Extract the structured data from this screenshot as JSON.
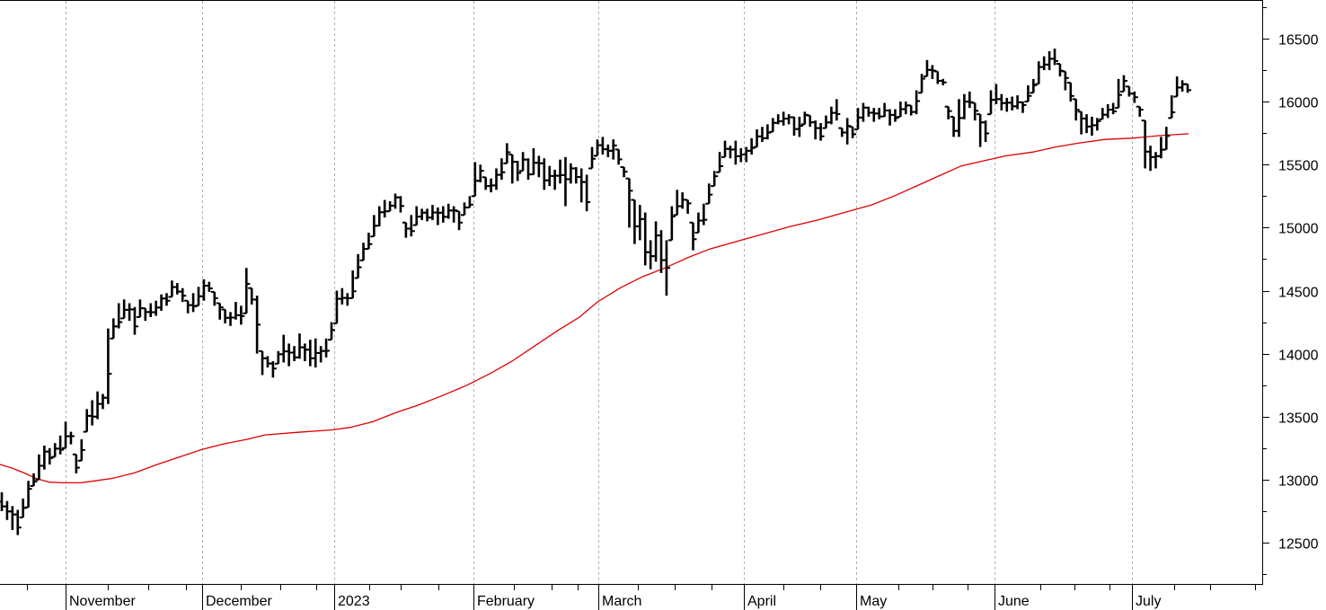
{
  "chart_data": {
    "type": "ohlc",
    "title": "",
    "xlabel": "",
    "ylabel": "",
    "ylim": [
      12150,
      16800
    ],
    "y_ticks": [
      12500,
      13000,
      13500,
      14000,
      14500,
      15000,
      15500,
      16000,
      16500
    ],
    "x_month_labels": [
      "November",
      "December",
      "2023",
      "February",
      "March",
      "April",
      "May",
      "June",
      "July"
    ],
    "grid": "vertical dashed at month starts",
    "colors": {
      "price_bars": "#000000",
      "moving_average": "#dd0000"
    },
    "series": [
      {
        "kind": "ohlc",
        "values": [
          [
            12900,
            12750
          ],
          [
            12830,
            12680
          ],
          [
            12790,
            12600
          ],
          [
            12760,
            12560
          ],
          [
            12850,
            12700
          ],
          [
            12990,
            12780
          ],
          [
            13050,
            12950
          ],
          [
            13200,
            13000
          ],
          [
            13270,
            13080
          ],
          [
            13250,
            13120
          ],
          [
            13290,
            13180
          ],
          [
            13350,
            13200
          ],
          [
            13460,
            13250
          ],
          [
            13380,
            13280
          ],
          [
            13200,
            13050
          ],
          [
            13320,
            13150
          ],
          [
            13560,
            13380
          ],
          [
            13630,
            13430
          ],
          [
            13700,
            13480
          ],
          [
            13680,
            13560
          ],
          [
            14200,
            13600
          ],
          [
            14280,
            14120
          ],
          [
            14400,
            14200
          ],
          [
            14430,
            14280
          ],
          [
            14400,
            14260
          ],
          [
            14370,
            14150
          ],
          [
            14430,
            14290
          ],
          [
            14360,
            14260
          ],
          [
            14400,
            14290
          ],
          [
            14420,
            14300
          ],
          [
            14470,
            14340
          ],
          [
            14480,
            14380
          ],
          [
            14580,
            14450
          ],
          [
            14560,
            14470
          ],
          [
            14520,
            14410
          ],
          [
            14420,
            14320
          ],
          [
            14480,
            14330
          ],
          [
            14530,
            14380
          ],
          [
            14590,
            14420
          ],
          [
            14570,
            14490
          ],
          [
            14490,
            14380
          ],
          [
            14400,
            14270
          ],
          [
            14350,
            14240
          ],
          [
            14330,
            14220
          ],
          [
            14410,
            14270
          ],
          [
            14380,
            14230
          ],
          [
            14680,
            14320
          ],
          [
            14520,
            14390
          ],
          [
            14460,
            14000
          ],
          [
            14020,
            13830
          ],
          [
            13980,
            13890
          ],
          [
            13940,
            13810
          ],
          [
            14020,
            13920
          ],
          [
            14150,
            13930
          ],
          [
            14080,
            13900
          ],
          [
            14060,
            13940
          ],
          [
            14160,
            13960
          ],
          [
            14080,
            13940
          ],
          [
            14110,
            13900
          ],
          [
            14120,
            13890
          ],
          [
            14060,
            13930
          ],
          [
            14120,
            13970
          ],
          [
            14250,
            14110
          ],
          [
            14500,
            14240
          ],
          [
            14520,
            14390
          ],
          [
            14480,
            14380
          ],
          [
            14660,
            14440
          ],
          [
            14790,
            14600
          ],
          [
            14880,
            14740
          ],
          [
            14960,
            14830
          ],
          [
            15100,
            14930
          ],
          [
            15170,
            15010
          ],
          [
            15220,
            15080
          ],
          [
            15210,
            15130
          ],
          [
            15270,
            15150
          ],
          [
            15250,
            15120
          ],
          [
            15040,
            14920
          ],
          [
            15100,
            14930
          ],
          [
            15170,
            15020
          ],
          [
            15150,
            15060
          ],
          [
            15150,
            15050
          ],
          [
            15180,
            15060
          ],
          [
            15160,
            15020
          ],
          [
            15170,
            15040
          ],
          [
            15190,
            15070
          ],
          [
            15170,
            15040
          ],
          [
            15130,
            14980
          ],
          [
            15200,
            15100
          ],
          [
            15250,
            15160
          ],
          [
            15520,
            15250
          ],
          [
            15500,
            15360
          ],
          [
            15400,
            15300
          ],
          [
            15390,
            15280
          ],
          [
            15470,
            15300
          ],
          [
            15550,
            15380
          ],
          [
            15670,
            15510
          ],
          [
            15580,
            15350
          ],
          [
            15530,
            15370
          ],
          [
            15600,
            15450
          ],
          [
            15550,
            15380
          ],
          [
            15630,
            15420
          ],
          [
            15570,
            15400
          ],
          [
            15550,
            15300
          ],
          [
            15490,
            15330
          ],
          [
            15460,
            15300
          ],
          [
            15540,
            15350
          ],
          [
            15560,
            15170
          ],
          [
            15510,
            15350
          ],
          [
            15480,
            15350
          ],
          [
            15470,
            15200
          ],
          [
            15420,
            15130
          ],
          [
            15640,
            15470
          ],
          [
            15700,
            15570
          ],
          [
            15720,
            15580
          ],
          [
            15660,
            15560
          ],
          [
            15700,
            15540
          ],
          [
            15620,
            15500
          ],
          [
            15480,
            15400
          ],
          [
            15390,
            15000
          ],
          [
            15220,
            14870
          ],
          [
            15180,
            14900
          ],
          [
            15120,
            14700
          ],
          [
            14900,
            14670
          ],
          [
            15050,
            14730
          ],
          [
            14980,
            14640
          ],
          [
            14900,
            14460
          ],
          [
            15170,
            14900
          ],
          [
            15300,
            15100
          ],
          [
            15280,
            15150
          ],
          [
            15220,
            15110
          ],
          [
            15040,
            14820
          ],
          [
            15120,
            14960
          ],
          [
            15190,
            15020
          ],
          [
            15350,
            15190
          ],
          [
            15450,
            15330
          ],
          [
            15600,
            15440
          ],
          [
            15690,
            15560
          ],
          [
            15650,
            15550
          ],
          [
            15690,
            15500
          ],
          [
            15630,
            15520
          ],
          [
            15640,
            15520
          ],
          [
            15710,
            15580
          ],
          [
            15780,
            15640
          ],
          [
            15800,
            15680
          ],
          [
            15820,
            15700
          ],
          [
            15870,
            15760
          ],
          [
            15900,
            15820
          ],
          [
            15920,
            15810
          ],
          [
            15900,
            15820
          ],
          [
            15880,
            15730
          ],
          [
            15880,
            15720
          ],
          [
            15920,
            15820
          ],
          [
            15890,
            15800
          ],
          [
            15850,
            15700
          ],
          [
            15830,
            15690
          ],
          [
            15890,
            15790
          ],
          [
            15960,
            15820
          ],
          [
            16020,
            15850
          ],
          [
            15790,
            15720
          ],
          [
            15870,
            15660
          ],
          [
            15800,
            15710
          ],
          [
            15950,
            15780
          ],
          [
            15990,
            15840
          ],
          [
            15960,
            15880
          ],
          [
            15950,
            15840
          ],
          [
            15950,
            15860
          ],
          [
            15990,
            15880
          ],
          [
            15940,
            15810
          ],
          [
            15940,
            15840
          ],
          [
            16000,
            15880
          ],
          [
            16000,
            15900
          ],
          [
            15970,
            15890
          ],
          [
            16090,
            15900
          ],
          [
            16220,
            16070
          ],
          [
            16330,
            16200
          ],
          [
            16290,
            16180
          ],
          [
            16240,
            16140
          ],
          [
            16180,
            16130
          ],
          [
            15960,
            15860
          ],
          [
            15880,
            15720
          ],
          [
            16020,
            15720
          ],
          [
            16060,
            15860
          ],
          [
            16080,
            15950
          ],
          [
            15990,
            15850
          ],
          [
            15900,
            15640
          ],
          [
            15850,
            15680
          ],
          [
            16090,
            15900
          ],
          [
            16140,
            15980
          ],
          [
            16060,
            15930
          ],
          [
            16030,
            15920
          ],
          [
            16040,
            15930
          ],
          [
            16050,
            15940
          ],
          [
            16000,
            15910
          ],
          [
            16130,
            16000
          ],
          [
            16180,
            16070
          ],
          [
            16320,
            16140
          ],
          [
            16360,
            16250
          ],
          [
            16400,
            16250
          ],
          [
            16420,
            16290
          ],
          [
            16300,
            16200
          ],
          [
            16240,
            16090
          ],
          [
            16150,
            16000
          ],
          [
            16020,
            15850
          ],
          [
            15920,
            15740
          ],
          [
            15900,
            15750
          ],
          [
            15880,
            15730
          ],
          [
            15870,
            15770
          ],
          [
            15950,
            15860
          ],
          [
            15980,
            15870
          ],
          [
            15990,
            15900
          ],
          [
            16180,
            15950
          ],
          [
            16210,
            16080
          ],
          [
            16120,
            16040
          ],
          [
            16080,
            15990
          ],
          [
            15960,
            15880
          ],
          [
            15850,
            15470
          ],
          [
            15650,
            15450
          ],
          [
            15600,
            15470
          ],
          [
            15720,
            15550
          ],
          [
            15800,
            15620
          ],
          [
            16050,
            15870
          ],
          [
            16200,
            16040
          ],
          [
            16170,
            16080
          ],
          [
            16140,
            16070
          ]
        ]
      },
      {
        "kind": "line",
        "values": [
          [
            0,
            13120
          ],
          [
            14,
            13090
          ],
          [
            28,
            13050
          ],
          [
            40,
            13010
          ],
          [
            55,
            12980
          ],
          [
            70,
            12975
          ],
          [
            90,
            12975
          ],
          [
            105,
            12990
          ],
          [
            125,
            13010
          ],
          [
            150,
            13055
          ],
          [
            175,
            13120
          ],
          [
            200,
            13180
          ],
          [
            225,
            13240
          ],
          [
            250,
            13285
          ],
          [
            275,
            13320
          ],
          [
            295,
            13355
          ],
          [
            330,
            13375
          ],
          [
            370,
            13395
          ],
          [
            390,
            13415
          ],
          [
            415,
            13460
          ],
          [
            440,
            13530
          ],
          [
            465,
            13590
          ],
          [
            490,
            13660
          ],
          [
            520,
            13750
          ],
          [
            545,
            13840
          ],
          [
            570,
            13940
          ],
          [
            595,
            14060
          ],
          [
            620,
            14180
          ],
          [
            645,
            14290
          ],
          [
            665,
            14410
          ],
          [
            690,
            14520
          ],
          [
            715,
            14610
          ],
          [
            740,
            14680
          ],
          [
            765,
            14760
          ],
          [
            790,
            14830
          ],
          [
            820,
            14890
          ],
          [
            850,
            14950
          ],
          [
            880,
            15010
          ],
          [
            910,
            15060
          ],
          [
            940,
            15120
          ],
          [
            970,
            15180
          ],
          [
            995,
            15250
          ],
          [
            1020,
            15330
          ],
          [
            1045,
            15410
          ],
          [
            1070,
            15490
          ],
          [
            1095,
            15530
          ],
          [
            1120,
            15570
          ],
          [
            1150,
            15600
          ],
          [
            1175,
            15640
          ],
          [
            1200,
            15670
          ],
          [
            1230,
            15700
          ],
          [
            1260,
            15710
          ],
          [
            1290,
            15730
          ],
          [
            1323,
            15745
          ]
        ]
      }
    ]
  }
}
